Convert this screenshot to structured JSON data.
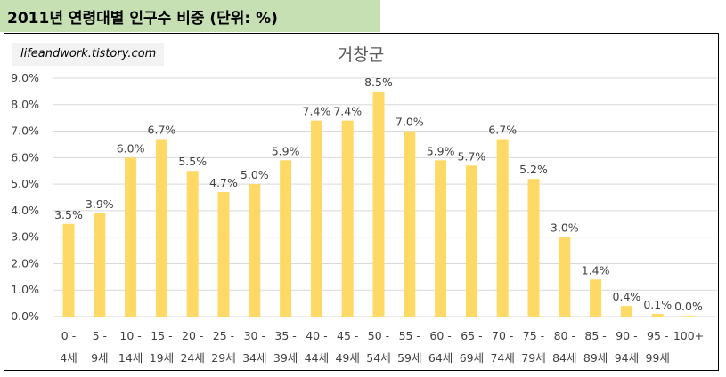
{
  "header": {
    "title": "2011년 연령대별 인구수 비중 (단위: %)"
  },
  "watermark": {
    "text": "lifeandwork.tistory.com"
  },
  "chart_data": {
    "type": "bar",
    "title": "거창군",
    "categories": [
      [
        "0 -",
        "4세"
      ],
      [
        "5 -",
        "9세"
      ],
      [
        "10 -",
        "14세"
      ],
      [
        "15 -",
        "19세"
      ],
      [
        "20 -",
        "24세"
      ],
      [
        "25 -",
        "29세"
      ],
      [
        "30 -",
        "34세"
      ],
      [
        "35 -",
        "39세"
      ],
      [
        "40 -",
        "44세"
      ],
      [
        "45 -",
        "49세"
      ],
      [
        "50 -",
        "54세"
      ],
      [
        "55 -",
        "59세"
      ],
      [
        "60 -",
        "64세"
      ],
      [
        "65 -",
        "69세"
      ],
      [
        "70 -",
        "74세"
      ],
      [
        "75 -",
        "79세"
      ],
      [
        "80 -",
        "84세"
      ],
      [
        "85 -",
        "89세"
      ],
      [
        "90 -",
        "94세"
      ],
      [
        "95 -",
        "99세"
      ],
      [
        "100+",
        ""
      ]
    ],
    "values": [
      3.5,
      3.9,
      6.0,
      6.7,
      5.5,
      4.7,
      5.0,
      5.9,
      7.4,
      7.4,
      8.5,
      7.0,
      5.9,
      5.7,
      6.7,
      5.2,
      3.0,
      1.4,
      0.4,
      0.1,
      0.0
    ],
    "data_labels": [
      "3.5%",
      "3.9%",
      "6.0%",
      "6.7%",
      "5.5%",
      "4.7%",
      "5.0%",
      "5.9%",
      "7.4%",
      "7.4%",
      "8.5%",
      "7.0%",
      "5.9%",
      "5.7%",
      "6.7%",
      "5.2%",
      "3.0%",
      "1.4%",
      "0.4%",
      "0.1%",
      "0.0%"
    ],
    "yticks": [
      "0.0%",
      "1.0%",
      "2.0%",
      "3.0%",
      "4.0%",
      "5.0%",
      "6.0%",
      "7.0%",
      "8.0%",
      "9.0%"
    ],
    "ylim": [
      0,
      9
    ],
    "grid": true,
    "bar_color": "#ffd966",
    "gridline_color": "#d9d9d9"
  }
}
